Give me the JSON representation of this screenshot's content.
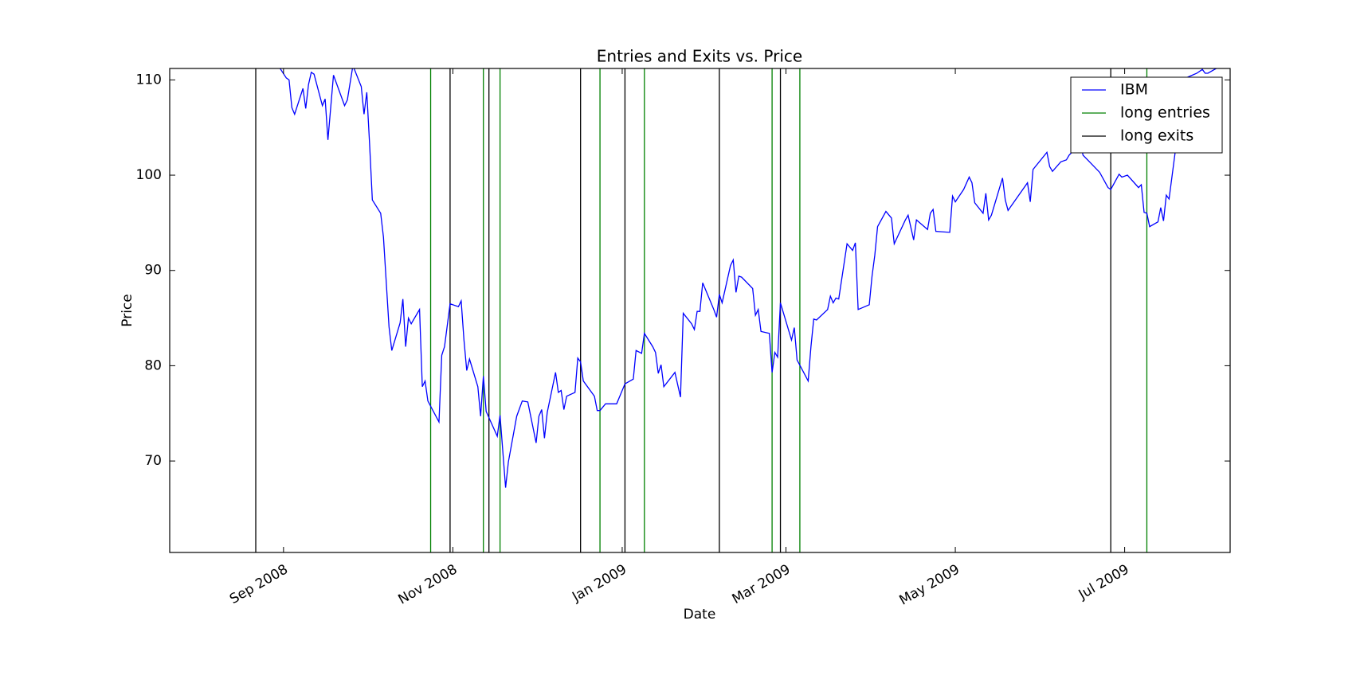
{
  "chart_data": {
    "type": "line",
    "title": "Entries and Exits vs. Price",
    "x_label": "Date",
    "y_label": "Price",
    "x": [
      "2008-08-29",
      "2008-09-02",
      "2008-09-03",
      "2008-09-04",
      "2008-09-05",
      "2008-09-08",
      "2008-09-09",
      "2008-09-10",
      "2008-09-11",
      "2008-09-12",
      "2008-09-15",
      "2008-09-16",
      "2008-09-17",
      "2008-09-19",
      "2008-09-23",
      "2008-09-24",
      "2008-09-26",
      "2008-09-29",
      "2008-09-30",
      "2008-10-01",
      "2008-10-02",
      "2008-10-03",
      "2008-10-06",
      "2008-10-07",
      "2008-10-09",
      "2008-10-10",
      "2008-10-13",
      "2008-10-14",
      "2008-10-15",
      "2008-10-16",
      "2008-10-17",
      "2008-10-20",
      "2008-10-21",
      "2008-10-22",
      "2008-10-23",
      "2008-10-27",
      "2008-10-28",
      "2008-10-29",
      "2008-10-31",
      "2008-11-03",
      "2008-11-04",
      "2008-11-05",
      "2008-11-06",
      "2008-11-07",
      "2008-11-10",
      "2008-11-11",
      "2008-11-12",
      "2008-11-13",
      "2008-11-17",
      "2008-11-18",
      "2008-11-20",
      "2008-11-21",
      "2008-11-24",
      "2008-11-26",
      "2008-11-28",
      "2008-12-01",
      "2008-12-02",
      "2008-12-03",
      "2008-12-04",
      "2008-12-05",
      "2008-12-08",
      "2008-12-09",
      "2008-12-10",
      "2008-12-11",
      "2008-12-12",
      "2008-12-15",
      "2008-12-16",
      "2008-12-17",
      "2008-12-18",
      "2008-12-22",
      "2008-12-23",
      "2008-12-24",
      "2008-12-26",
      "2008-12-30",
      "2009-01-02",
      "2009-01-05",
      "2009-01-06",
      "2009-01-08",
      "2009-01-09",
      "2009-01-12",
      "2009-01-13",
      "2009-01-14",
      "2009-01-15",
      "2009-01-16",
      "2009-01-20",
      "2009-01-22",
      "2009-01-23",
      "2009-01-26",
      "2009-01-27",
      "2009-01-28",
      "2009-01-29",
      "2009-01-30",
      "2009-02-02",
      "2009-02-03",
      "2009-02-04",
      "2009-02-05",
      "2009-02-06",
      "2009-02-09",
      "2009-02-10",
      "2009-02-11",
      "2009-02-12",
      "2009-02-13",
      "2009-02-17",
      "2009-02-18",
      "2009-02-19",
      "2009-02-20",
      "2009-02-23",
      "2009-02-24",
      "2009-02-25",
      "2009-02-26",
      "2009-02-27",
      "2009-03-03",
      "2009-03-04",
      "2009-03-05",
      "2009-03-09",
      "2009-03-10",
      "2009-03-11",
      "2009-03-12",
      "2009-03-16",
      "2009-03-17",
      "2009-03-18",
      "2009-03-19",
      "2009-03-20",
      "2009-03-23",
      "2009-03-25",
      "2009-03-26",
      "2009-03-27",
      "2009-03-31",
      "2009-04-01",
      "2009-04-02",
      "2009-04-03",
      "2009-04-06",
      "2009-04-08",
      "2009-04-09",
      "2009-04-13",
      "2009-04-14",
      "2009-04-16",
      "2009-04-17",
      "2009-04-21",
      "2009-04-22",
      "2009-04-23",
      "2009-04-24",
      "2009-04-29",
      "2009-04-30",
      "2009-05-01",
      "2009-05-04",
      "2009-05-06",
      "2009-05-07",
      "2009-05-08",
      "2009-05-11",
      "2009-05-12",
      "2009-05-13",
      "2009-05-14",
      "2009-05-18",
      "2009-05-19",
      "2009-05-20",
      "2009-05-27",
      "2009-05-28",
      "2009-05-29",
      "2009-06-03",
      "2009-06-04",
      "2009-06-05",
      "2009-06-08",
      "2009-06-10",
      "2009-06-11",
      "2009-06-12",
      "2009-06-15",
      "2009-06-16",
      "2009-06-18",
      "2009-06-22",
      "2009-06-25",
      "2009-06-26",
      "2009-06-29",
      "2009-06-30",
      "2009-07-02",
      "2009-07-06",
      "2009-07-07",
      "2009-07-08",
      "2009-07-09",
      "2009-07-10",
      "2009-07-13",
      "2009-07-14",
      "2009-07-15",
      "2009-07-16",
      "2009-07-17",
      "2009-07-20",
      "2009-07-21",
      "2009-07-23",
      "2009-07-27",
      "2009-07-29",
      "2009-07-30",
      "2009-07-31",
      "2009-08-03"
    ],
    "series": [
      {
        "name": "IBM",
        "color": "#0000ff",
        "values": [
          112.0,
          110.2,
          110.0,
          107.1,
          106.4,
          109.1,
          107.0,
          109.5,
          110.8,
          110.6,
          107.3,
          108.0,
          103.7,
          110.5,
          107.3,
          107.9,
          111.5,
          109.3,
          106.4,
          108.7,
          103.3,
          97.4,
          96.0,
          93.5,
          84.1,
          81.6,
          84.5,
          87.0,
          82.0,
          85.0,
          84.4,
          85.9,
          77.8,
          78.4,
          76.3,
          74.1,
          81.1,
          82.0,
          86.5,
          86.2,
          86.8,
          82.7,
          79.5,
          80.7,
          77.8,
          74.7,
          78.9,
          75.2,
          72.6,
          74.8,
          67.2,
          69.9,
          74.7,
          76.3,
          76.2,
          71.9,
          74.7,
          75.4,
          72.4,
          75.1,
          79.3,
          77.2,
          77.4,
          75.4,
          76.8,
          77.2,
          80.8,
          80.4,
          78.4,
          76.8,
          75.3,
          75.3,
          76.0,
          76.0,
          78.1,
          78.6,
          81.6,
          81.3,
          83.4,
          82.0,
          81.4,
          79.2,
          80.1,
          77.8,
          79.3,
          76.7,
          85.5,
          84.4,
          83.8,
          85.7,
          85.7,
          88.7,
          86.6,
          85.9,
          85.1,
          87.5,
          86.6,
          90.5,
          91.1,
          87.7,
          89.4,
          89.3,
          88.1,
          85.3,
          85.9,
          83.6,
          83.4,
          79.3,
          81.4,
          80.9,
          86.6,
          82.7,
          84.0,
          80.6,
          78.4,
          82.0,
          84.9,
          84.8,
          85.9,
          87.3,
          86.6,
          87.1,
          87.0,
          92.8,
          92.1,
          92.9,
          85.9,
          86.4,
          89.4,
          91.6,
          94.6,
          96.2,
          95.5,
          92.8,
          95.3,
          95.8,
          93.2,
          95.3,
          94.3,
          96.0,
          96.4,
          94.1,
          94.0,
          97.8,
          97.2,
          98.5,
          99.8,
          99.2,
          97.1,
          96.0,
          98.1,
          95.3,
          95.8,
          99.7,
          97.4,
          96.3,
          99.2,
          97.2,
          100.6,
          102.4,
          100.9,
          100.4,
          101.4,
          101.6,
          102.1,
          102.4,
          103.5,
          102.1,
          101.5,
          100.3,
          98.7,
          98.5,
          100.1,
          99.8,
          100.0,
          98.7,
          99.0,
          96.1,
          96.0,
          94.6,
          95.1,
          96.6,
          95.2,
          97.9,
          97.5,
          104.2,
          106.5,
          110.2,
          110.7,
          111.1,
          110.7,
          110.7,
          111.2
        ]
      }
    ],
    "events": [
      {
        "name": "long entries",
        "color": "#008000",
        "x": [
          "2008-10-24",
          "2008-11-12",
          "2008-11-18",
          "2008-12-24",
          "2009-01-09",
          "2009-02-24",
          "2009-03-06",
          "2009-07-09"
        ]
      },
      {
        "name": "long exits",
        "color": "#000000",
        "x": [
          "2008-08-22",
          "2008-10-31",
          "2008-11-14",
          "2008-12-17",
          "2009-01-02",
          "2009-02-05",
          "2009-02-27",
          "2009-06-26"
        ]
      }
    ],
    "xlim": [
      "2008-07-22",
      "2009-08-08"
    ],
    "xticks": [
      {
        "value": "2008-09-01",
        "label": "Sep 2008"
      },
      {
        "value": "2008-11-01",
        "label": "Nov 2008"
      },
      {
        "value": "2009-01-01",
        "label": "Jan 2009"
      },
      {
        "value": "2009-03-01",
        "label": "Mar 2009"
      },
      {
        "value": "2009-05-01",
        "label": "May 2009"
      },
      {
        "value": "2009-07-01",
        "label": "Jul 2009"
      }
    ],
    "ylim": [
      60.4,
      111.2
    ],
    "yticks": [
      70,
      80,
      90,
      100,
      110
    ],
    "grid": false,
    "legend": "upper right"
  }
}
